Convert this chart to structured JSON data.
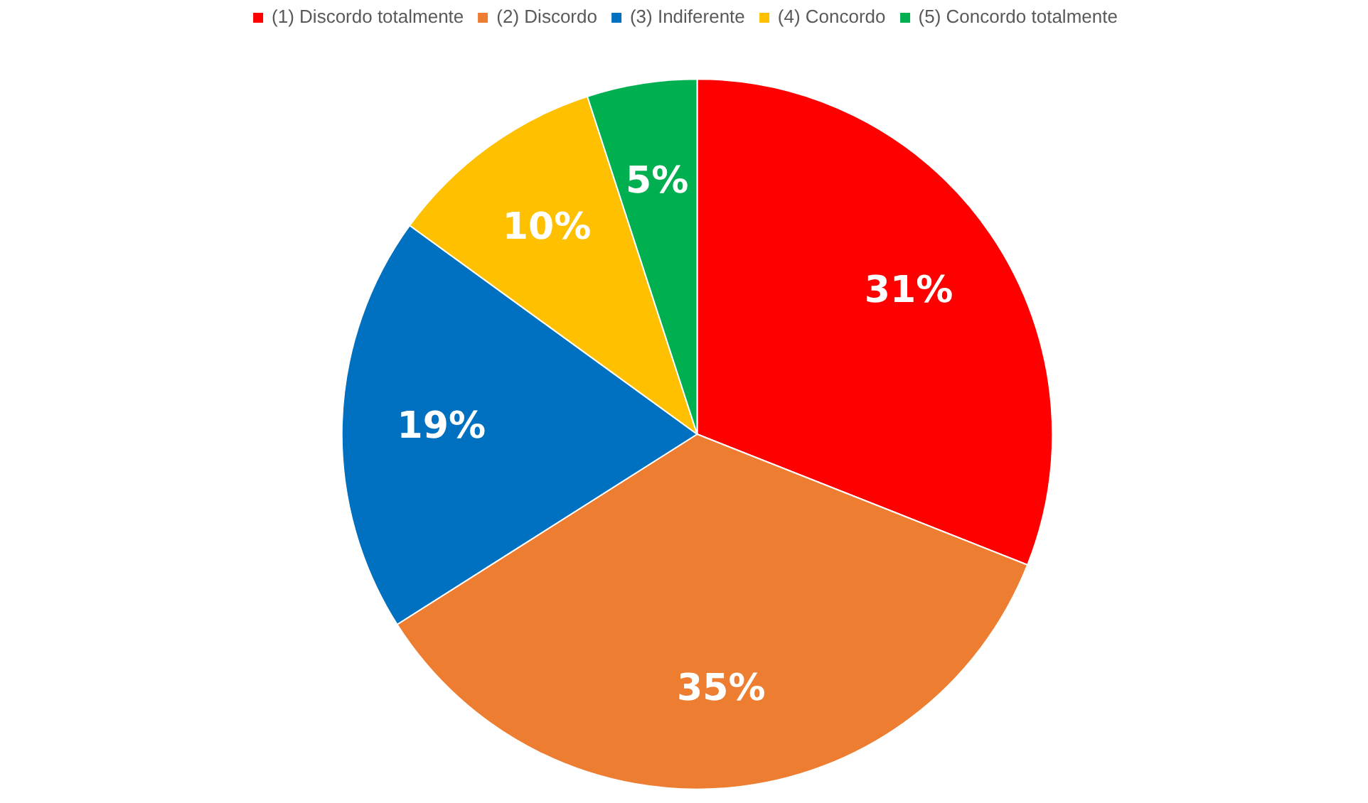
{
  "chart_data": {
    "type": "pie",
    "categories": [
      "(1) Discordo totalmente",
      "(2) Discordo",
      "(3) Indiferente",
      "(4) Concordo",
      "(5) Concordo totalmente"
    ],
    "values": [
      31,
      35,
      19,
      10,
      5
    ],
    "value_labels": [
      "31%",
      "35%",
      "19%",
      "10%",
      "5%"
    ],
    "colors": [
      "#ff0000",
      "#ed7d31",
      "#0070c0",
      "#ffc000",
      "#00b050"
    ],
    "legend": "top"
  }
}
